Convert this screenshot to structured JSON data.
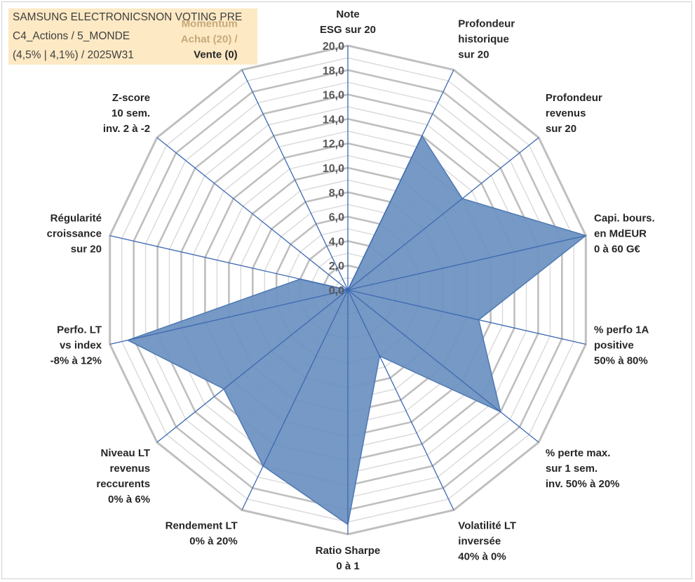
{
  "title": {
    "line1": "SAMSUNG ELECTRONICSNON VOTING PRE",
    "line2": "C4_Actions / 5_MONDE",
    "line3": "(4,5% | 4,1%) / 2025W31"
  },
  "chart_data": {
    "type": "radar",
    "rmin": 0,
    "rmax": 20,
    "ticks": [
      "0,0",
      "2,0",
      "4,0",
      "6,0",
      "8,0",
      "10,0",
      "12,0",
      "14,0",
      "16,0",
      "18,0",
      "20,0"
    ],
    "grid": true,
    "axes": [
      {
        "label": [
          "Note",
          "ESG sur 20"
        ],
        "value": 0
      },
      {
        "label": [
          "Profondeur",
          "historique",
          "sur 20"
        ],
        "value": 14
      },
      {
        "label": [
          "Profondeur",
          "revenus",
          "sur 20"
        ],
        "value": 12
      },
      {
        "label": [
          "Capi. bours.",
          "en MdEUR",
          "0 à 60 G€"
        ],
        "value": 20
      },
      {
        "label": [
          "% perfo 1A",
          "positive",
          "50% à 80%"
        ],
        "value": 11
      },
      {
        "label": [
          "% perte max.",
          "sur 1 sem.",
          "inv. 50% à 20%"
        ],
        "value": 16
      },
      {
        "label": [
          "Volatilité LT",
          "inversée",
          "40% à 0%"
        ],
        "value": 6
      },
      {
        "label": [
          "Ratio Sharpe",
          "0 à 1"
        ],
        "value": 19.2
      },
      {
        "label": [
          "Rendement LT",
          "0% à 20%"
        ],
        "value": 16
      },
      {
        "label": [
          "Niveau LT",
          "revenus",
          "reccurents",
          "0% à 6%"
        ],
        "value": 13
      },
      {
        "label": [
          "Perfo. LT",
          "vs index",
          "-8% à 12%"
        ],
        "value": 18.5
      },
      {
        "label": [
          "Régularité",
          "croissance",
          "sur 20"
        ],
        "value": 4
      },
      {
        "label": [
          "Z-score",
          "10 sem.",
          "inv. 2 à -2"
        ],
        "value": 0
      },
      {
        "label": [
          "Momentum",
          "Achat (20) /",
          "Vente (0)"
        ],
        "value": 0
      }
    ],
    "series": [
      {
        "values": [
          0,
          14,
          12,
          20,
          11,
          16,
          6,
          19.2,
          16,
          13,
          18.5,
          4,
          0,
          0
        ]
      }
    ],
    "colors": {
      "fill": "#6f93c2",
      "stroke": "#4f79b5",
      "spoke": "#3c69b2",
      "ring": "#bfbfbf",
      "grid": "#d9d9d9",
      "momentum_label": "#c6a97a"
    }
  }
}
